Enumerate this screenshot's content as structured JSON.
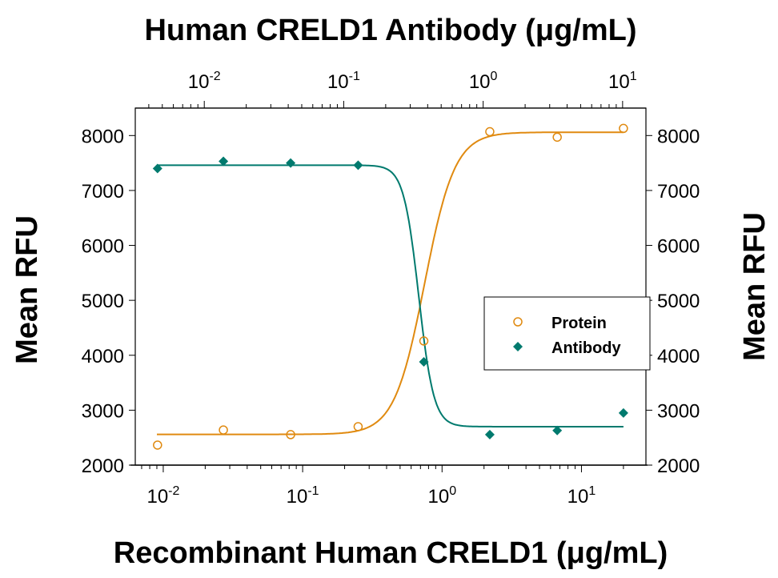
{
  "chart_data": {
    "type": "scatter",
    "title_top": "Human CRELD1 Antibody (μg/mL)",
    "xlabel": "Recombinant Human CRELD1 (μg/mL)",
    "ylabel_left": "Mean RFU",
    "ylabel_right": "Mean RFU",
    "x_scale": "log",
    "x_top_scale": "log",
    "xlim": [
      0.0063,
      29
    ],
    "x_top_lim": [
      0.0032,
      14.7
    ],
    "ylim": [
      2000,
      8500
    ],
    "y_ticks": [
      2000,
      3000,
      4000,
      5000,
      6000,
      7000,
      8000
    ],
    "x_ticks": [
      {
        "base": "10",
        "exp": "-2",
        "value": 0.01
      },
      {
        "base": "10",
        "exp": "-1",
        "value": 0.1
      },
      {
        "base": "10",
        "exp": "0",
        "value": 1
      },
      {
        "base": "10",
        "exp": "1",
        "value": 10
      }
    ],
    "x_top_ticks": [
      {
        "base": "10",
        "exp": "-2",
        "value": 0.01
      },
      {
        "base": "10",
        "exp": "-1",
        "value": 0.1
      },
      {
        "base": "10",
        "exp": "0",
        "value": 1
      },
      {
        "base": "10",
        "exp": "1",
        "value": 10
      }
    ],
    "grid": false,
    "legend_position": "right",
    "series": [
      {
        "name": "Protein",
        "marker": "open-circle",
        "color": "#E08A10",
        "x": [
          0.0091,
          0.027,
          0.082,
          0.25,
          0.74,
          2.2,
          6.7,
          20
        ],
        "y": [
          2365,
          2640,
          2555,
          2700,
          4260,
          8070,
          7970,
          8130
        ],
        "fit": {
          "bottom": 2560,
          "top": 8060,
          "ec50": 0.75,
          "hill": 4
        }
      },
      {
        "name": "Antibody",
        "marker": "filled-diamond",
        "color": "#007A6E",
        "x": [
          0.0091,
          0.027,
          0.082,
          0.25,
          0.74,
          2.2,
          6.7,
          20
        ],
        "y": [
          7400,
          7530,
          7500,
          7460,
          3880,
          2555,
          2630,
          2950
        ],
        "fit": {
          "bottom": 2700,
          "top": 7460,
          "ec50": 0.68,
          "hill": -8
        }
      }
    ]
  }
}
